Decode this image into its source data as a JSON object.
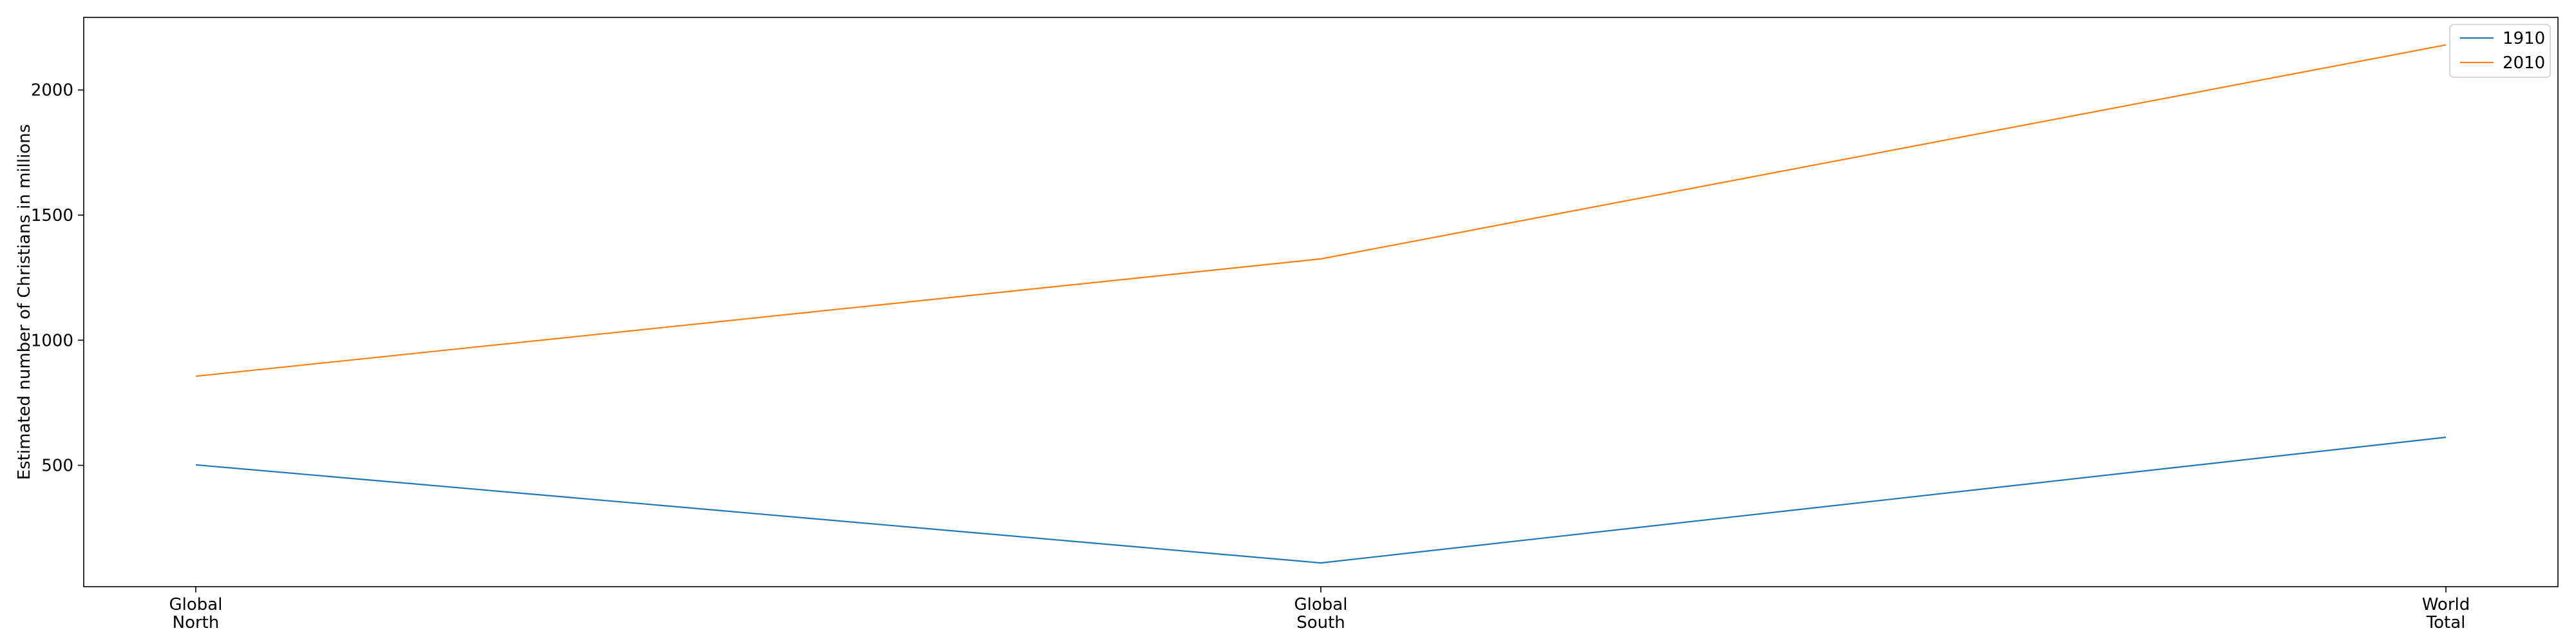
{
  "chart_data": {
    "type": "line",
    "categories": [
      "Global\nNorth",
      "Global\nSouth",
      "World\nTotal"
    ],
    "series": [
      {
        "name": "1910",
        "values": [
          502,
          110,
          612
        ],
        "color": "#1f77b4"
      },
      {
        "name": "2010",
        "values": [
          856,
          1325,
          2180
        ],
        "color": "#ff7f0e"
      }
    ],
    "xlabel": "",
    "ylabel": "Estimated number of Christians in millions",
    "ylim": [
      15,
      2290
    ],
    "yticks": [
      500,
      1000,
      1500,
      2000
    ],
    "grid": false,
    "legend_position": "top-right"
  }
}
